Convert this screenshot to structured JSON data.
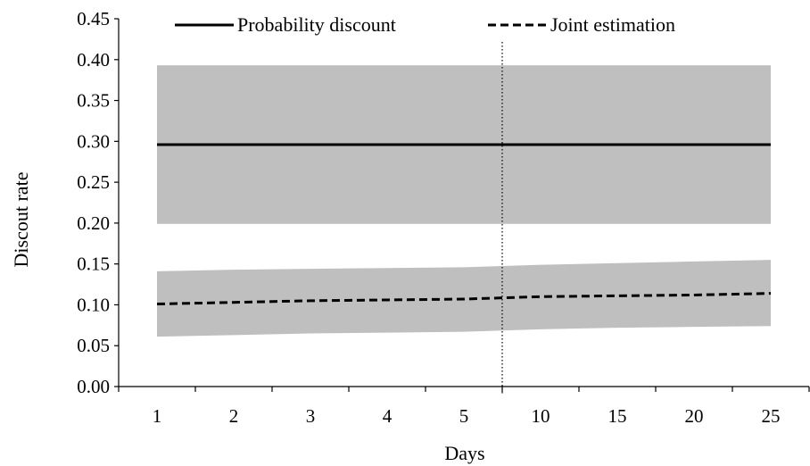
{
  "chart_data": {
    "type": "line",
    "xlabel": "Days",
    "ylabel": "Discout rate",
    "categories": [
      "1",
      "2",
      "3",
      "4",
      "5",
      "10",
      "15",
      "20",
      "25"
    ],
    "ylim": [
      0,
      0.45
    ],
    "yticks": [
      "0.00",
      "0.05",
      "0.10",
      "0.15",
      "0.20",
      "0.25",
      "0.30",
      "0.35",
      "0.40",
      "0.45"
    ],
    "series": [
      {
        "name": "Probability discount",
        "style": "solid",
        "values": [
          0.296,
          0.296,
          0.296,
          0.296,
          0.296,
          0.296,
          0.296,
          0.296,
          0.296
        ],
        "band_low": [
          0.199,
          0.199,
          0.199,
          0.199,
          0.199,
          0.199,
          0.199,
          0.199,
          0.199
        ],
        "band_high": [
          0.393,
          0.393,
          0.393,
          0.393,
          0.393,
          0.393,
          0.393,
          0.393,
          0.393
        ]
      },
      {
        "name": "Joint estimation",
        "style": "dashed",
        "values": [
          0.101,
          0.103,
          0.105,
          0.106,
          0.107,
          0.11,
          0.111,
          0.112,
          0.114
        ],
        "band_low": [
          0.061,
          0.063,
          0.065,
          0.066,
          0.067,
          0.07,
          0.072,
          0.073,
          0.074
        ],
        "band_high": [
          0.141,
          0.143,
          0.144,
          0.145,
          0.146,
          0.149,
          0.151,
          0.153,
          0.155
        ]
      }
    ],
    "break_after_category": "5",
    "legend_position": "top",
    "grid": false,
    "colors": {
      "band": "#bfbfbf",
      "line": "#000000",
      "axis": "#000000"
    }
  }
}
